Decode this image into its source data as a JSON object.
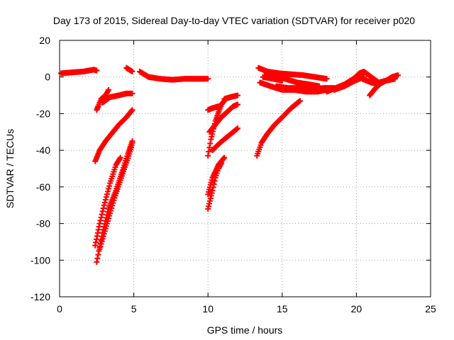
{
  "chart_data": {
    "type": "scatter",
    "title": "Day 173 of 2015, Sidereal Day-to-day VTEC variation (SDTVAR) for receiver p020",
    "xlabel": "GPS time / hours",
    "ylabel": "SDTVAR / TECUs",
    "xlim": [
      0,
      25
    ],
    "ylim": [
      -120,
      20
    ],
    "xticks": [
      0,
      5,
      10,
      15,
      20,
      25
    ],
    "yticks": [
      20,
      0,
      -20,
      -40,
      -60,
      -80,
      -100,
      -120
    ],
    "grid": true,
    "marker": "+",
    "series_color": "#ff0000",
    "tracks": [
      {
        "x": [
          0.1,
          0.8,
          1.6,
          2.3,
          2.5
        ],
        "y": [
          2,
          2.5,
          3,
          4,
          3.5
        ]
      },
      {
        "x": [
          2.5,
          2.6,
          2.8,
          3.1,
          3.3
        ],
        "y": [
          -18,
          -16,
          -12,
          -10,
          -7
        ]
      },
      {
        "x": [
          2.9,
          3.4,
          4.0,
          4.5,
          4.9
        ],
        "y": [
          -14,
          -11,
          -10,
          -9,
          -9
        ]
      },
      {
        "x": [
          2.4,
          2.7,
          3.1,
          3.5,
          4.0,
          4.5,
          4.9
        ],
        "y": [
          -46,
          -40,
          -35,
          -31,
          -26,
          -22,
          -18
        ]
      },
      {
        "x": [
          2.4,
          2.7,
          3.0,
          3.4,
          3.8,
          4.1
        ],
        "y": [
          -92,
          -80,
          -70,
          -58,
          -48,
          -44
        ]
      },
      {
        "x": [
          2.5,
          2.9,
          3.3,
          3.8,
          4.2,
          4.6,
          4.9
        ],
        "y": [
          -101,
          -85,
          -72,
          -62,
          -52,
          -42,
          -35
        ]
      },
      {
        "x": [
          2.7,
          3.2,
          3.7,
          4.2,
          4.7,
          4.9
        ],
        "y": [
          -94,
          -80,
          -66,
          -54,
          -42,
          -36
        ]
      },
      {
        "x": [
          4.5,
          4.7,
          4.9
        ],
        "y": [
          5,
          4,
          3
        ]
      },
      {
        "x": [
          5.4,
          6.0,
          6.8,
          7.6,
          8.4,
          9.2,
          10.0
        ],
        "y": [
          3,
          0,
          -1,
          -1.5,
          -1,
          -1,
          -1
        ]
      },
      {
        "x": [
          10.0,
          10.3,
          10.7
        ],
        "y": [
          -18,
          -17,
          -16
        ]
      },
      {
        "x": [
          10.0,
          10.2,
          10.5,
          10.9,
          11.1
        ],
        "y": [
          -43,
          -34,
          -24,
          -15,
          -13
        ]
      },
      {
        "x": [
          10.0,
          10.3,
          10.7,
          11.1
        ],
        "y": [
          -64,
          -55,
          -48,
          -44
        ]
      },
      {
        "x": [
          10.0,
          10.3,
          10.5,
          10.7,
          10.9
        ],
        "y": [
          -72,
          -62,
          -55,
          -50,
          -47
        ]
      },
      {
        "x": [
          10.1,
          10.5,
          10.9,
          11.3,
          11.7,
          12.0
        ],
        "y": [
          -30,
          -26,
          -22,
          -19,
          -16,
          -15
        ]
      },
      {
        "x": [
          10.3,
          10.8,
          11.4,
          12.0
        ],
        "y": [
          -40,
          -36,
          -32,
          -28
        ]
      },
      {
        "x": [
          11.1,
          11.5,
          12.0
        ],
        "y": [
          -12,
          -11,
          -10
        ]
      },
      {
        "x": [
          13.3,
          13.6,
          14.0,
          14.5,
          15.0,
          15.6,
          16.2
        ],
        "y": [
          -43,
          -36,
          -31,
          -26,
          -22,
          -17,
          -13
        ]
      },
      {
        "x": [
          13.4,
          14.0,
          14.8,
          15.6,
          16.4,
          17.2,
          18.0
        ],
        "y": [
          5,
          3,
          2,
          1.5,
          1,
          0,
          -1
        ]
      },
      {
        "x": [
          13.8,
          14.5,
          15.2,
          16.0,
          16.8,
          17.5
        ],
        "y": [
          3,
          1,
          -1,
          -3,
          -4,
          -5
        ]
      },
      {
        "x": [
          13.7,
          14.4,
          15.0
        ],
        "y": [
          0,
          -1,
          -2
        ]
      },
      {
        "x": [
          13.5,
          14.2,
          15.0,
          15.8,
          16.6,
          17.4,
          18.0
        ],
        "y": [
          -3,
          -5,
          -7,
          -7,
          -8,
          -8,
          -7
        ]
      },
      {
        "x": [
          14.6,
          15.4,
          16.2,
          17.0,
          17.8,
          18.5
        ],
        "y": [
          -5,
          -6,
          -6,
          -6.5,
          -6,
          -6
        ]
      },
      {
        "x": [
          18.0,
          18.6,
          19.2,
          19.8,
          20.2,
          20.5,
          21.0,
          21.5,
          22.0,
          22.4,
          22.8
        ],
        "y": [
          -8,
          -6,
          -4,
          -1,
          2,
          3,
          0,
          -3,
          -2,
          0,
          1
        ]
      },
      {
        "x": [
          18.5,
          19.2,
          19.9,
          20.5
        ],
        "y": [
          -7,
          -5,
          -2,
          0
        ]
      },
      {
        "x": [
          20.4,
          21.0,
          21.5,
          22.0,
          22.6
        ],
        "y": [
          -1,
          -3,
          -4,
          -2,
          -1
        ]
      },
      {
        "x": [
          20.9,
          21.3,
          21.7
        ],
        "y": [
          -10,
          -6,
          -3
        ]
      }
    ]
  }
}
